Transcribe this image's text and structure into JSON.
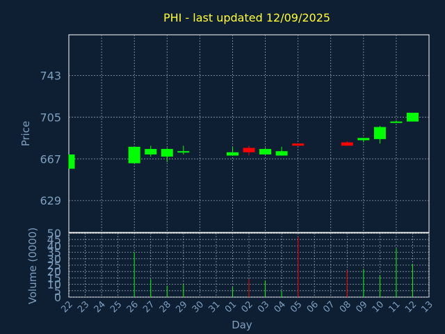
{
  "chart_data": {
    "type": "candlestick",
    "title": "PHI - last updated 12/09/2025",
    "ylabel": "Price",
    "volume_ylabel": "Volume (0000)",
    "xlabel": "Day",
    "price_ticks": [
      629,
      667,
      705,
      743
    ],
    "volume_ticks": [
      0,
      5,
      10,
      15,
      20,
      25,
      30,
      35,
      40,
      45,
      50
    ],
    "price_ylim": [
      600,
      780
    ],
    "volume_ylim": [
      0,
      50
    ],
    "grid": true,
    "up_color": "#00ff00",
    "down_color": "#ff0000",
    "days": [
      "22",
      "23",
      "24",
      "25",
      "26",
      "27",
      "28",
      "29",
      "30",
      "31",
      "01",
      "02",
      "03",
      "04",
      "05",
      "06",
      "07",
      "08",
      "09",
      "10",
      "11",
      "12",
      "13"
    ],
    "candles": [
      {
        "day": "22",
        "open": 658,
        "close": 671,
        "high": 671,
        "low": 658,
        "volume": 0
      },
      {
        "day": "26",
        "open": 663,
        "close": 678,
        "high": 678,
        "low": 663,
        "volume": 35
      },
      {
        "day": "27",
        "open": 671,
        "close": 676,
        "high": 679,
        "low": 669,
        "volume": 14
      },
      {
        "day": "28",
        "open": 669,
        "close": 676,
        "high": 677,
        "low": 664,
        "volume": 9
      },
      {
        "day": "29",
        "open": 673,
        "close": 674,
        "high": 679,
        "low": 671,
        "volume": 10
      },
      {
        "day": "01",
        "open": 670,
        "close": 673,
        "high": 678,
        "low": 670,
        "volume": 8
      },
      {
        "day": "02",
        "open": 677,
        "close": 673,
        "high": 679,
        "low": 670,
        "volume": 14
      },
      {
        "day": "03",
        "open": 671,
        "close": 676,
        "high": 677,
        "low": 671,
        "volume": 13
      },
      {
        "day": "04",
        "open": 670,
        "close": 674,
        "high": 678,
        "low": 670,
        "volume": 5
      },
      {
        "day": "05",
        "open": 681,
        "close": 679,
        "high": 681,
        "low": 679,
        "volume": 47
      },
      {
        "day": "08",
        "open": 682,
        "close": 679,
        "high": 683,
        "low": 679,
        "volume": 21
      },
      {
        "day": "09",
        "open": 684,
        "close": 686,
        "high": 686,
        "low": 682,
        "volume": 22
      },
      {
        "day": "10",
        "open": 685,
        "close": 696,
        "high": 697,
        "low": 681,
        "volume": 17
      },
      {
        "day": "11",
        "open": 700,
        "close": 701,
        "high": 702,
        "low": 700,
        "volume": 38
      },
      {
        "day": "12",
        "open": 701,
        "close": 709,
        "high": 709,
        "low": 701,
        "volume": 26
      }
    ]
  }
}
